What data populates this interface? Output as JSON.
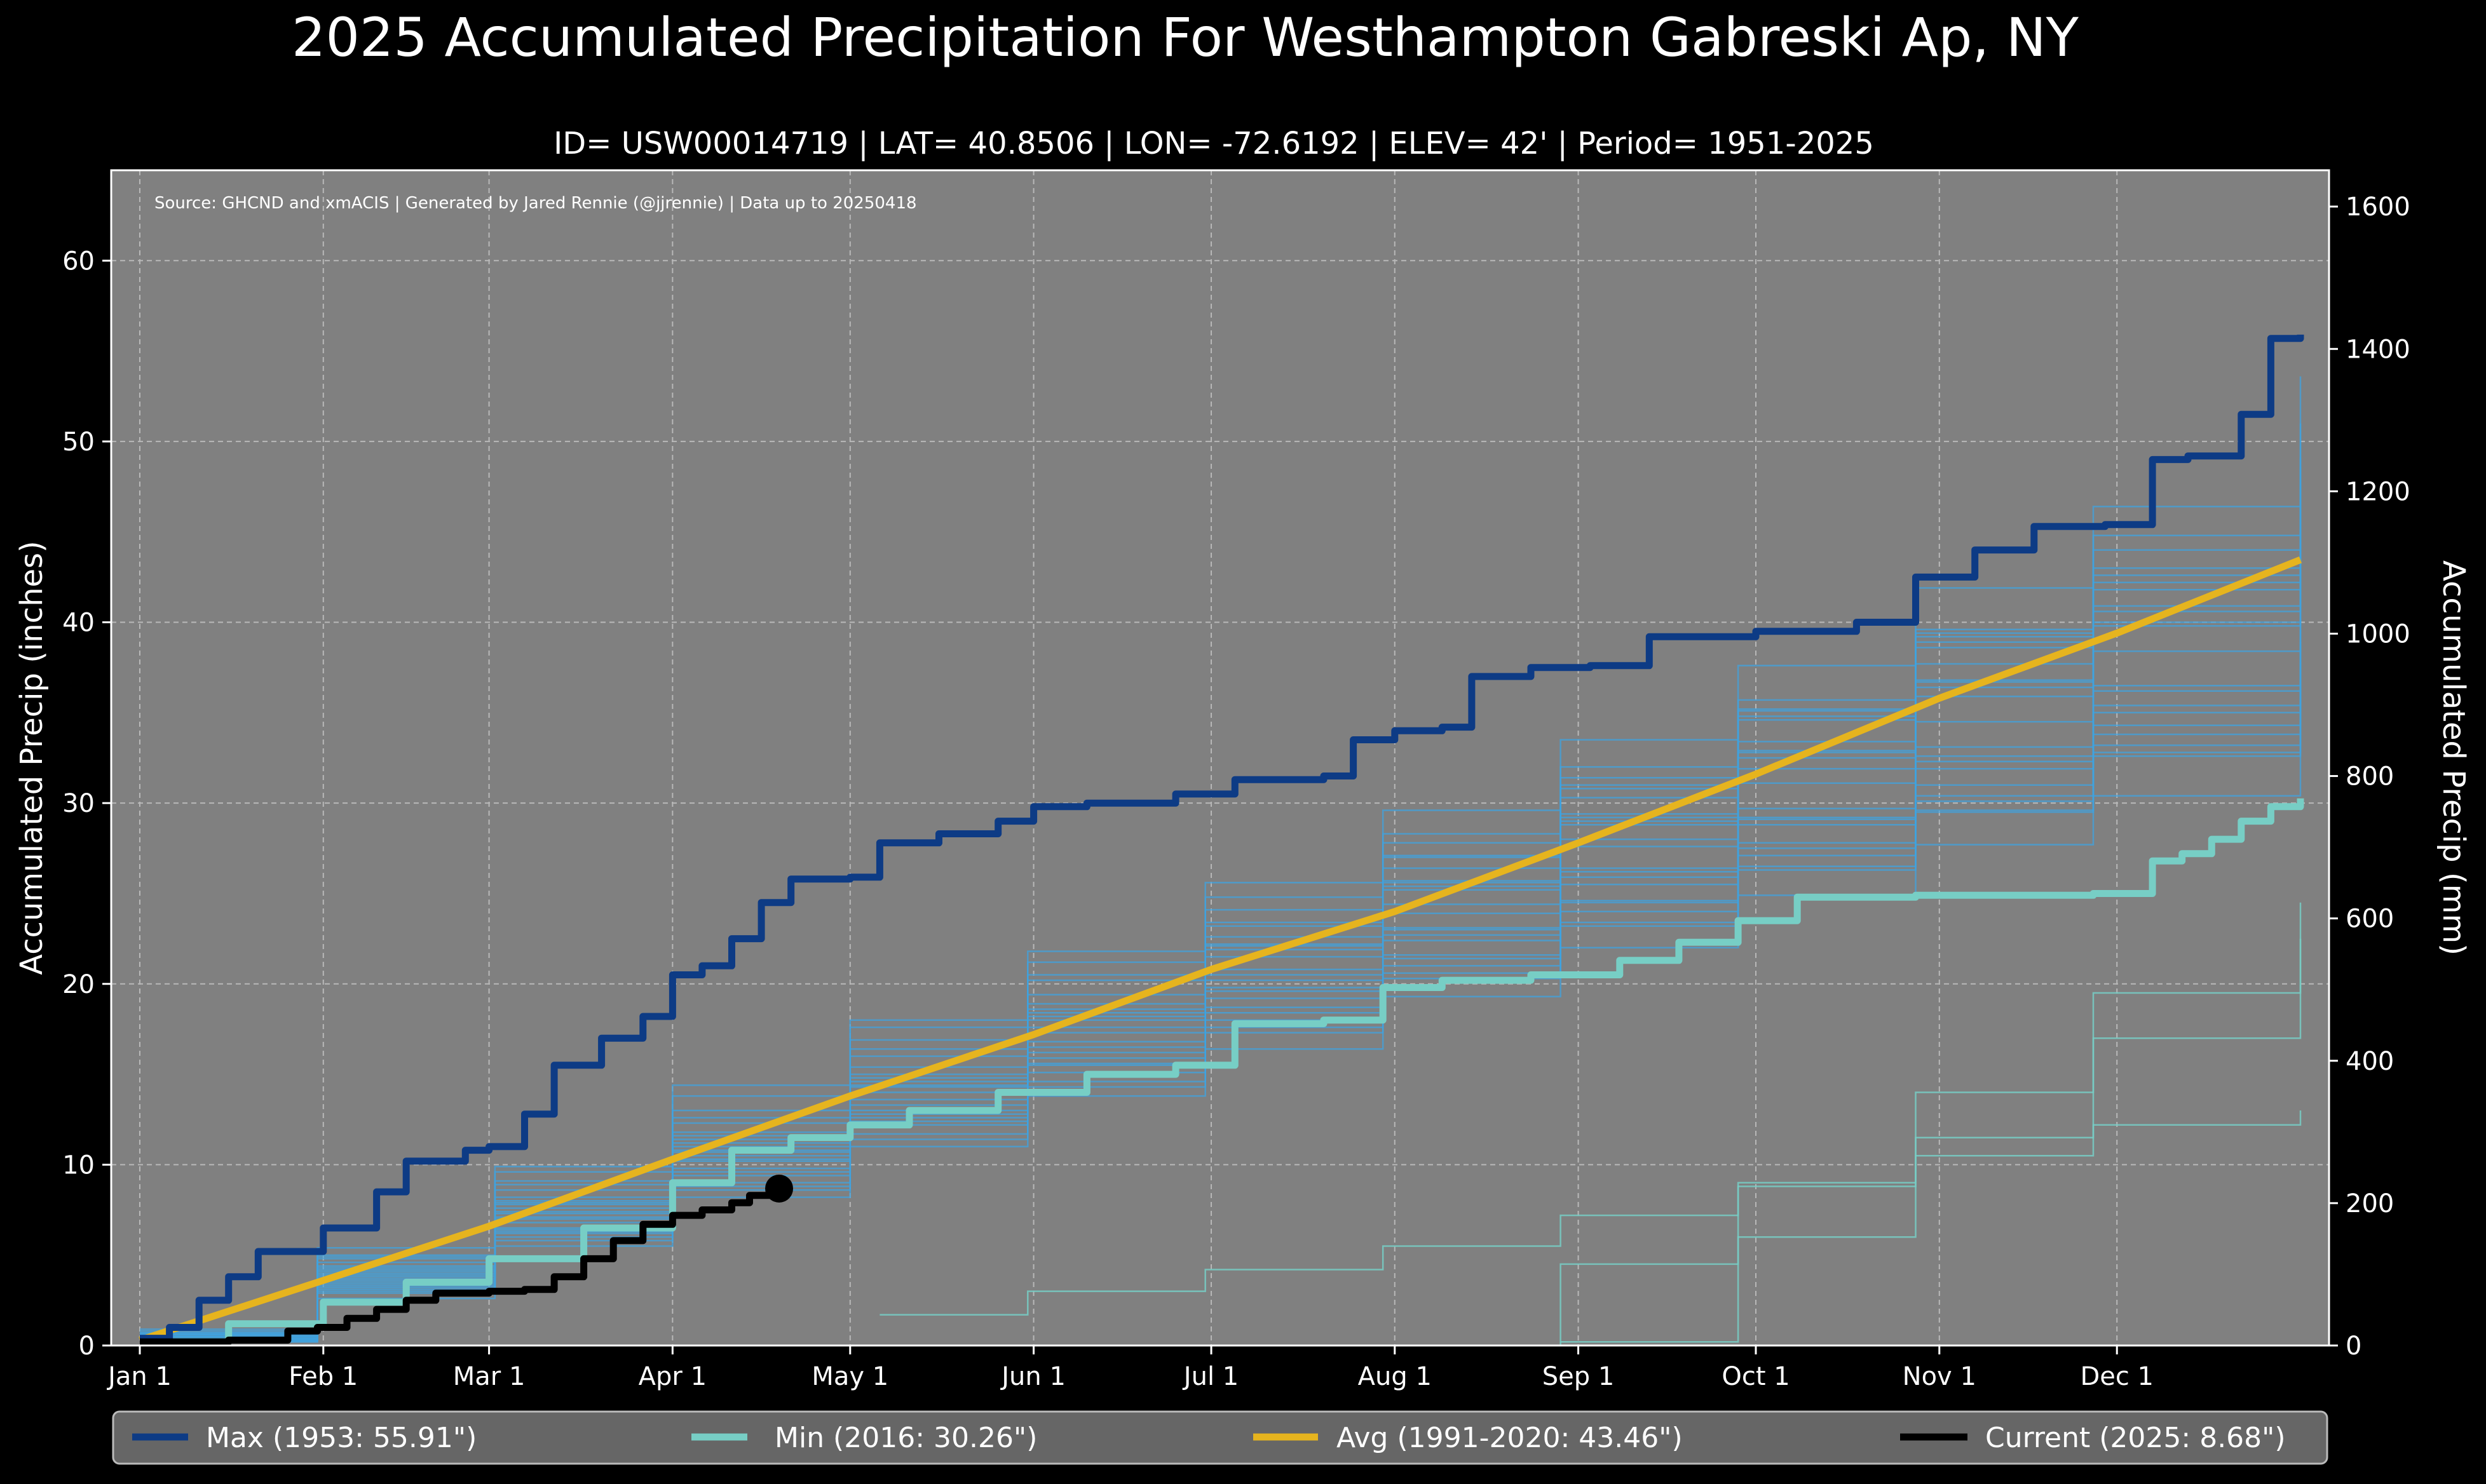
{
  "chart_data": {
    "type": "line",
    "title": "2025 Accumulated Precipitation For Westhampton Gabreski Ap, NY",
    "subtitle": "ID= USW00014719 | LAT= 40.8506 | LON= -72.6192 | ELEV= 42' | Period= 1951-2025",
    "source": "Source: GHCND and xmACIS | Generated by Jared Rennie (@jjrennie) | Data up to 20250418",
    "ylabel": "Accumulated Precip (inches)",
    "ylabel_right": "Accumulated Precip (mm)",
    "xlim": [
      0,
      365
    ],
    "ylim": [
      0,
      65
    ],
    "ylim_right_mm": [
      0,
      1651
    ],
    "grid": true,
    "legend_position": "bottom",
    "x_ticks": [
      {
        "day": 0,
        "label": "Jan 1"
      },
      {
        "day": 31,
        "label": "Feb 1"
      },
      {
        "day": 59,
        "label": "Mar 1"
      },
      {
        "day": 90,
        "label": "Apr 1"
      },
      {
        "day": 120,
        "label": "May 1"
      },
      {
        "day": 151,
        "label": "Jun 1"
      },
      {
        "day": 181,
        "label": "Jul 1"
      },
      {
        "day": 212,
        "label": "Aug 1"
      },
      {
        "day": 243,
        "label": "Sep 1"
      },
      {
        "day": 273,
        "label": "Oct 1"
      },
      {
        "day": 304,
        "label": "Nov 1"
      },
      {
        "day": 334,
        "label": "Dec 1"
      }
    ],
    "y_ticks": [
      0,
      10,
      20,
      30,
      40,
      50,
      60
    ],
    "y_ticks_right": [
      0,
      200,
      400,
      600,
      800,
      1000,
      1200,
      1400,
      1600
    ],
    "series": [
      {
        "name": "Max (1953:  55.91\")",
        "color": "#0d3b85",
        "width": 11,
        "x": [
          0,
          5,
          10,
          15,
          20,
          31,
          40,
          45,
          55,
          59,
          65,
          70,
          78,
          85,
          90,
          95,
          100,
          105,
          110,
          120,
          125,
          135,
          145,
          151,
          160,
          175,
          185,
          200,
          205,
          212,
          220,
          225,
          235,
          245,
          255,
          273,
          290,
          300,
          310,
          320,
          332,
          340,
          346,
          355,
          360,
          365
        ],
        "y": [
          0.4,
          1.0,
          2.5,
          3.8,
          5.2,
          6.5,
          8.5,
          10.2,
          10.8,
          11.0,
          12.8,
          15.5,
          17.0,
          18.2,
          20.5,
          21.0,
          22.5,
          24.5,
          25.8,
          25.9,
          27.8,
          28.3,
          29.0,
          29.8,
          30.0,
          30.5,
          31.3,
          31.5,
          33.5,
          34.0,
          34.2,
          37.0,
          37.5,
          37.6,
          39.2,
          39.5,
          40.0,
          42.5,
          44.0,
          45.3,
          45.4,
          49.0,
          49.2,
          51.5,
          55.7,
          55.91
        ]
      },
      {
        "name": "Min (2016:  30.26\")",
        "color": "#77cec5",
        "width": 11,
        "x": [
          0,
          15,
          31,
          45,
          59,
          75,
          90,
          100,
          110,
          120,
          130,
          145,
          160,
          175,
          185,
          200,
          210,
          220,
          235,
          250,
          260,
          270,
          280,
          300,
          330,
          340,
          345,
          350,
          355,
          360,
          365
        ],
        "y": [
          0.2,
          1.2,
          2.4,
          3.5,
          4.8,
          6.5,
          9.0,
          10.8,
          11.5,
          12.2,
          13.0,
          14.0,
          15.0,
          15.5,
          17.8,
          18.0,
          19.8,
          20.2,
          20.5,
          21.3,
          22.3,
          23.5,
          24.8,
          24.9,
          25.0,
          26.8,
          27.2,
          28.0,
          29.0,
          29.8,
          30.26
        ]
      },
      {
        "name": "Avg (1991-2020:  43.46\")",
        "color": "#e6b41e",
        "width": 11,
        "x": [
          0,
          31,
          59,
          90,
          120,
          151,
          181,
          212,
          243,
          273,
          304,
          334,
          365
        ],
        "y": [
          0.3,
          3.6,
          6.6,
          10.3,
          13.8,
          17.2,
          20.8,
          24.0,
          27.8,
          31.6,
          35.8,
          39.4,
          43.46
        ]
      },
      {
        "name": "Current (2025:   8.68\")",
        "color": "#000000",
        "width": 11,
        "x": [
          0,
          15,
          25,
          30,
          35,
          40,
          45,
          50,
          59,
          65,
          70,
          75,
          80,
          85,
          90,
          95,
          100,
          103,
          108
        ],
        "y": [
          0.2,
          0.3,
          0.8,
          1.0,
          1.5,
          2.0,
          2.5,
          2.9,
          3.0,
          3.1,
          3.8,
          4.8,
          5.8,
          6.7,
          7.2,
          7.5,
          7.9,
          8.3,
          8.68
        ]
      }
    ],
    "current_marker": {
      "day": 108,
      "value": 8.68
    },
    "background_years": [
      {
        "x": [
          0,
          30,
          60,
          90,
          120,
          150,
          180,
          210,
          240,
          270,
          300,
          330,
          365
        ],
        "y": [
          0.5,
          4.2,
          7.9,
          11.4,
          15.0,
          18.6,
          22.1,
          25.7,
          29.2,
          32.9,
          36.4,
          40.0,
          44.1
        ]
      },
      {
        "x": [
          0,
          30,
          60,
          90,
          120,
          150,
          180,
          210,
          240,
          270,
          300,
          330,
          365
        ],
        "y": [
          0.4,
          3.1,
          6.4,
          9.4,
          12.2,
          15.1,
          18.0,
          21.0,
          24.0,
          27.1,
          30.1,
          33.2,
          36.6
        ]
      },
      {
        "x": [
          0,
          30,
          60,
          90,
          120,
          150,
          180,
          210,
          240,
          270,
          300,
          330,
          365
        ],
        "y": [
          0.6,
          5.0,
          9.6,
          13.8,
          17.6,
          21.2,
          24.8,
          28.3,
          32.0,
          35.7,
          39.4,
          43.0,
          47.6
        ]
      },
      {
        "x": [
          0,
          30,
          60,
          90,
          120,
          150,
          180,
          210,
          240,
          270,
          300,
          330,
          365
        ],
        "y": [
          0.3,
          2.6,
          5.5,
          8.2,
          11.0,
          13.8,
          16.4,
          19.3,
          22.0,
          24.9,
          27.7,
          30.4,
          33.8
        ]
      },
      {
        "x": [
          0,
          30,
          60,
          90,
          120,
          150,
          180,
          210,
          240,
          270,
          300,
          330,
          365
        ],
        "y": [
          0.8,
          4.4,
          8.0,
          11.6,
          14.8,
          18.4,
          22.6,
          26.4,
          30.3,
          34.6,
          38.6,
          42.6,
          46.8
        ]
      },
      {
        "x": [
          0,
          30,
          60,
          90,
          120,
          150,
          180,
          210,
          240,
          270,
          300,
          330,
          365
        ],
        "y": [
          0.2,
          3.5,
          6.8,
          10.2,
          13.0,
          15.9,
          19.2,
          22.4,
          25.5,
          28.8,
          31.9,
          35.0,
          38.7
        ]
      },
      {
        "x": [
          0,
          30,
          60,
          90,
          120,
          150,
          180,
          210,
          240,
          270,
          300,
          330,
          365
        ],
        "y": [
          0.5,
          3.9,
          7.4,
          11.0,
          14.3,
          17.6,
          20.5,
          23.9,
          27.6,
          31.1,
          34.5,
          38.4,
          42.0
        ]
      },
      {
        "x": [
          0,
          30,
          60,
          90,
          120,
          150,
          180,
          210,
          240,
          270,
          300,
          330,
          365
        ],
        "y": [
          0.7,
          4.8,
          8.6,
          12.3,
          16.4,
          20.2,
          23.4,
          27.0,
          30.8,
          34.8,
          39.2,
          44.0,
          49.1
        ]
      },
      {
        "x": [
          0,
          30,
          60,
          90,
          120,
          150,
          180,
          210,
          240,
          270,
          300,
          330,
          365
        ],
        "y": [
          0.3,
          3.3,
          6.2,
          9.0,
          12.4,
          15.6,
          18.7,
          21.6,
          24.6,
          27.5,
          30.4,
          33.8,
          37.4
        ]
      },
      {
        "x": [
          0,
          30,
          60,
          90,
          120,
          150,
          180,
          210,
          240,
          270,
          300,
          330,
          365
        ],
        "y": [
          0.6,
          4.6,
          8.9,
          12.6,
          16.0,
          19.4,
          23.2,
          27.1,
          31.0,
          35.1,
          39.6,
          44.8,
          53.6
        ]
      },
      {
        "x": [
          0,
          30,
          60,
          90,
          120,
          150,
          180,
          210,
          240,
          270,
          300,
          330,
          365
        ],
        "y": [
          0.4,
          4.0,
          7.6,
          10.7,
          13.6,
          16.8,
          20.2,
          23.1,
          26.4,
          29.7,
          33.1,
          36.5,
          40.2
        ]
      },
      {
        "x": [
          0,
          30,
          60,
          90,
          120,
          150,
          180,
          210,
          240,
          270,
          300,
          330,
          365
        ],
        "y": [
          0.5,
          3.7,
          7.0,
          10.5,
          14.0,
          17.3,
          20.8,
          24.4,
          28.0,
          31.9,
          35.9,
          39.8,
          44.5
        ]
      },
      {
        "x": [
          0,
          30,
          60,
          90,
          120,
          150,
          180,
          210,
          240,
          270,
          300,
          330,
          365
        ],
        "y": [
          0.3,
          3.0,
          6.0,
          8.8,
          11.7,
          14.6,
          17.6,
          20.6,
          23.4,
          26.5,
          29.6,
          32.6,
          35.9
        ]
      },
      {
        "x": [
          0,
          30,
          60,
          90,
          120,
          150,
          180,
          210,
          240,
          270,
          300,
          330,
          365
        ],
        "y": [
          0.9,
          5.4,
          9.9,
          14.4,
          18.0,
          21.8,
          25.6,
          29.6,
          33.5,
          37.6,
          41.9,
          46.4,
          51.0
        ]
      },
      {
        "x": [
          0,
          30,
          60,
          90,
          120,
          150,
          180,
          210,
          240,
          270,
          300,
          330,
          365
        ],
        "y": [
          0.2,
          3.4,
          6.5,
          9.8,
          12.8,
          16.2,
          19.6,
          23.0,
          26.2,
          29.2,
          32.6,
          36.2,
          39.6
        ]
      },
      {
        "x": [
          0,
          30,
          60,
          90,
          120,
          150,
          180,
          210,
          240,
          270,
          300,
          330,
          365
        ],
        "y": [
          0.6,
          4.3,
          8.2,
          11.8,
          15.4,
          18.9,
          22.2,
          25.4,
          28.8,
          32.5,
          36.7,
          40.9,
          45.3
        ]
      },
      {
        "x": [
          0,
          30,
          60,
          90,
          120,
          150,
          180,
          210,
          240,
          270,
          300,
          330,
          365
        ],
        "y": [
          0.4,
          3.6,
          7.1,
          10.3,
          13.3,
          16.5,
          19.8,
          22.7,
          25.9,
          29.1,
          32.3,
          35.4,
          38.9
        ]
      },
      {
        "x": [
          0,
          30,
          60,
          90,
          120,
          150,
          180,
          210,
          240,
          270,
          300,
          330,
          365
        ],
        "y": [
          0.5,
          4.1,
          7.8,
          11.2,
          14.6,
          18.0,
          21.5,
          25.2,
          29.0,
          32.8,
          36.8,
          40.6,
          43.3
        ]
      },
      {
        "x": [
          0,
          30,
          60,
          90,
          120,
          150,
          180,
          210,
          240,
          270,
          300,
          330,
          365
        ],
        "y": [
          0.7,
          4.9,
          9.1,
          13.0,
          16.9,
          20.5,
          24.1,
          27.8,
          31.4,
          35.2,
          38.9,
          42.2,
          46.0
        ]
      },
      {
        "x": [
          0,
          30,
          60,
          90,
          120,
          150,
          180,
          210,
          240,
          270,
          300,
          330,
          365
        ],
        "y": [
          0.3,
          2.9,
          5.8,
          8.6,
          11.4,
          14.3,
          17.3,
          20.3,
          23.2,
          26.3,
          29.5,
          32.8,
          36.3
        ]
      },
      {
        "x": [
          0,
          30,
          60,
          90,
          120,
          150,
          180,
          210,
          240,
          270,
          300,
          330,
          365
        ],
        "y": [
          0.5,
          3.8,
          7.3,
          10.8,
          14.4,
          18.2,
          21.9,
          25.6,
          29.4,
          33.4,
          37.7,
          41.8,
          48.6
        ]
      },
      {
        "x": [
          0,
          30,
          60,
          90,
          120,
          150,
          180,
          210,
          240,
          270,
          300,
          330,
          365
        ],
        "y": [
          0.4,
          3.2,
          6.3,
          9.6,
          12.6,
          15.5,
          18.4,
          21.4,
          24.5,
          27.8,
          31.0,
          34.3,
          37.8
        ]
      }
    ],
    "partial_years": [
      {
        "x": [
          125,
          150,
          180,
          210,
          240,
          270,
          300,
          330,
          365
        ],
        "y": [
          1.7,
          3.0,
          4.2,
          5.5,
          7.2,
          8.8,
          10.5,
          12.2,
          13.0
        ]
      },
      {
        "x": [
          210,
          240,
          270,
          300,
          330,
          365
        ],
        "y": [
          0.0,
          4.5,
          9.0,
          14.0,
          19.5,
          24.5
        ]
      },
      {
        "x": [
          240,
          270,
          300,
          330,
          365
        ],
        "y": [
          0.2,
          6.0,
          11.5,
          17.0,
          22.5
        ]
      }
    ]
  },
  "legend": {
    "max": {
      "label": "Max (1953:  55.91\")",
      "color": "#0d3b85"
    },
    "min": {
      "label": "Min (2016:  30.26\")",
      "color": "#77cec5"
    },
    "avg": {
      "label": "Avg (1991-2020:  43.46\")",
      "color": "#e6b41e"
    },
    "current": {
      "label": "Current (2025:   8.68\")",
      "color": "#000000"
    }
  },
  "colors": {
    "background": "#000000",
    "plot_background": "#808080",
    "grid": "#b8b8b8",
    "background_years": "#3fa3e0",
    "partial_years": "#77cec5",
    "legend_background": "#666666",
    "text": "#ffffff"
  }
}
